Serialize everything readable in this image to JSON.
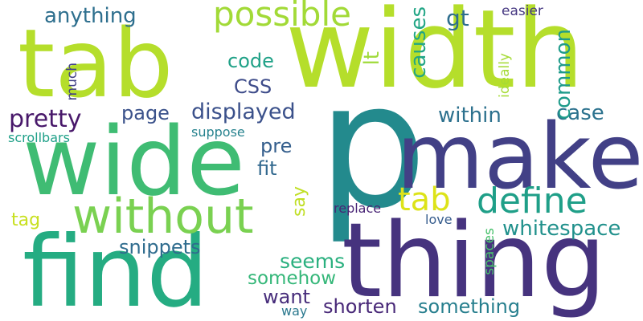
{
  "words": [
    {
      "text": "p",
      "color": "#238a8d"
    },
    {
      "text": "width",
      "color": "#b5de2b"
    },
    {
      "text": "tab",
      "color": "#b5de2b"
    },
    {
      "text": "thing",
      "color": "#46337e"
    },
    {
      "text": "make",
      "color": "#424086"
    },
    {
      "text": "wide",
      "color": "#3fbc73"
    },
    {
      "text": "find",
      "color": "#25ac82"
    },
    {
      "text": "without",
      "color": "#7ad151"
    },
    {
      "text": "possible",
      "color": "#a2da37"
    },
    {
      "text": "define",
      "color": "#1f9f88"
    },
    {
      "text": "tab",
      "color": "#dde318"
    },
    {
      "text": "anything",
      "color": "#2e6f8e"
    },
    {
      "text": "pretty",
      "color": "#48186a"
    },
    {
      "text": "displayed",
      "color": "#3b518b"
    },
    {
      "text": "within",
      "color": "#2d718e"
    },
    {
      "text": "case",
      "color": "#2c728e"
    },
    {
      "text": "whitespace",
      "color": "#21918c"
    },
    {
      "text": "snippets",
      "color": "#2f6c8e"
    },
    {
      "text": "seems",
      "color": "#2ab07f"
    },
    {
      "text": "somehow",
      "color": "#35b779"
    },
    {
      "text": "want",
      "color": "#472d7b"
    },
    {
      "text": "shorten",
      "color": "#482878"
    },
    {
      "text": "something",
      "color": "#277f8e"
    },
    {
      "text": "code",
      "color": "#1fa187"
    },
    {
      "text": "CSS",
      "color": "#3e4c8a"
    },
    {
      "text": "page",
      "color": "#3b528b"
    },
    {
      "text": "pre",
      "color": "#355f8d"
    },
    {
      "text": "fit",
      "color": "#31688e"
    },
    {
      "text": "tag",
      "color": "#c8e020"
    },
    {
      "text": "gt",
      "color": "#2e6e8e"
    },
    {
      "text": "easier",
      "color": "#453781"
    },
    {
      "text": "replace",
      "color": "#482475"
    },
    {
      "text": "love",
      "color": "#365c8d"
    },
    {
      "text": "scrollbars",
      "color": "#1fa088"
    },
    {
      "text": "suppose",
      "color": "#26828e"
    },
    {
      "text": "way",
      "color": "#2a788e"
    },
    {
      "text": "lt",
      "color": "#9fda3a"
    },
    {
      "text": "causes",
      "color": "#21a585"
    },
    {
      "text": "common",
      "color": "#1e9b8a"
    },
    {
      "text": "ideally",
      "color": "#a5db36"
    },
    {
      "text": "much",
      "color": "#424186"
    },
    {
      "text": "say",
      "color": "#c0df25"
    },
    {
      "text": "spaces",
      "color": "#4ac16d"
    }
  ]
}
